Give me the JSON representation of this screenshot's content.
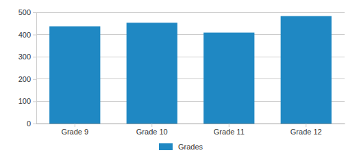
{
  "chart_data": {
    "type": "bar",
    "categories": [
      "Grade 9",
      "Grade 10",
      "Grade 11",
      "Grade 12"
    ],
    "series": [
      {
        "name": "Grades",
        "color": "#1f88c3",
        "values": [
          437,
          453,
          409,
          483
        ]
      }
    ],
    "ylim": [
      0,
      500
    ],
    "yticks": [
      0,
      100,
      200,
      300,
      400,
      500
    ],
    "grid": true,
    "legend": "bottom"
  }
}
